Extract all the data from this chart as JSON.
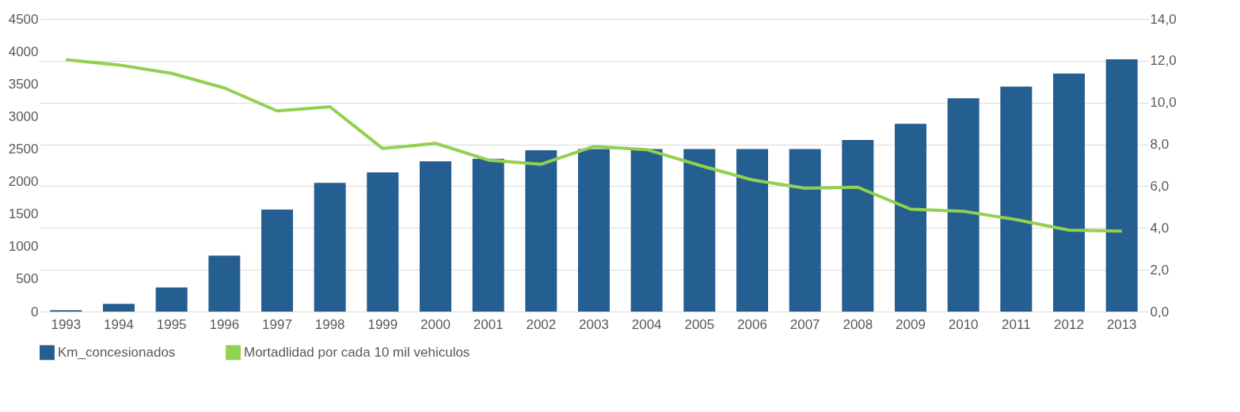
{
  "chart_data": {
    "type": "bar",
    "categories": [
      "1993",
      "1994",
      "1995",
      "1996",
      "1997",
      "1998",
      "1999",
      "2000",
      "2001",
      "2002",
      "2003",
      "2004",
      "2005",
      "2006",
      "2007",
      "2008",
      "2009",
      "2010",
      "2011",
      "2012",
      "2013"
    ],
    "series": [
      {
        "name": "Km_concesionados",
        "color": "#255e91",
        "values": [
          20,
          120,
          370,
          860,
          1570,
          1980,
          2140,
          2310,
          2350,
          2480,
          2500,
          2500,
          2500,
          2500,
          2500,
          2640,
          2890,
          3280,
          3460,
          3660,
          3880
        ]
      },
      {
        "name": "Mortadlidad por cada 10 mil vehiculos",
        "type": "line",
        "axis": "y2",
        "color": "#92d050",
        "values": [
          12.05,
          11.8,
          11.4,
          10.7,
          9.6,
          9.8,
          7.8,
          8.05,
          7.25,
          7.05,
          7.9,
          7.75,
          7.0,
          6.3,
          5.9,
          5.95,
          4.9,
          4.8,
          4.4,
          3.9,
          3.85
        ]
      }
    ],
    "ylim": [
      0,
      4500
    ],
    "yticks": [
      0,
      500,
      1000,
      1500,
      2000,
      2500,
      3000,
      3500,
      4000,
      4500
    ],
    "y2lim": [
      0,
      14
    ],
    "y2ticks": [
      {
        "value": 0,
        "label": "0,0"
      },
      {
        "value": 2,
        "label": "2,0"
      },
      {
        "value": 4,
        "label": "4,0"
      },
      {
        "value": 6,
        "label": "6,0"
      },
      {
        "value": 8,
        "label": "8,0"
      },
      {
        "value": 10,
        "label": "10,0"
      },
      {
        "value": 12,
        "label": "12,0"
      },
      {
        "value": 14,
        "label": "14,0"
      }
    ],
    "grid": true,
    "legend": "bottom",
    "marker": "none",
    "line_style": "solid"
  }
}
